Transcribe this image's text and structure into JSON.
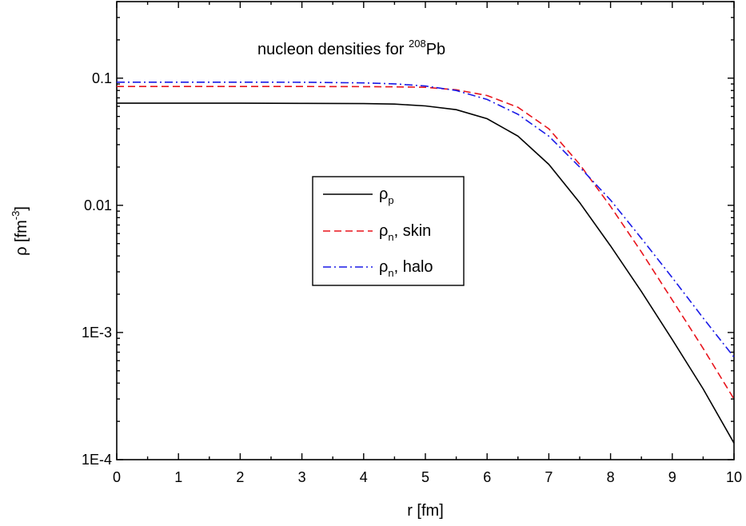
{
  "chart_data": {
    "type": "line",
    "title": {
      "prefix": "nucleon densities for ",
      "superscript": "208",
      "suffix": "Pb"
    },
    "xlabel": "r [fm]",
    "ylabel": {
      "main": "ρ [fm",
      "superscript": "-3",
      "close": "]"
    },
    "xlim": [
      0,
      10
    ],
    "ylim": [
      0.0001,
      0.4
    ],
    "yscale": "log",
    "x_ticks": [
      "0",
      "1",
      "2",
      "3",
      "4",
      "5",
      "6",
      "7",
      "8",
      "9",
      "10"
    ],
    "y_ticks": [
      {
        "value": 0.0001,
        "label": "1E-4"
      },
      {
        "value": 0.001,
        "label": "1E-3"
      },
      {
        "value": 0.01,
        "label": "0.01"
      },
      {
        "value": 0.1,
        "label": "0.1"
      }
    ],
    "grid": false,
    "legend_position": "center",
    "series": [
      {
        "name": "ρp",
        "label_main": "ρ",
        "label_sub": "p",
        "label_rest": "",
        "color": "#000000",
        "dash": "solid",
        "x": [
          0,
          1,
          2,
          3,
          4,
          4.5,
          5,
          5.5,
          6,
          6.5,
          7,
          7.5,
          8,
          8.5,
          9,
          9.5,
          10
        ],
        "y": [
          0.0635,
          0.0635,
          0.0635,
          0.0634,
          0.0631,
          0.0625,
          0.0605,
          0.0565,
          0.048,
          0.035,
          0.021,
          0.0105,
          0.0048,
          0.0021,
          0.00088,
          0.00036,
          0.000135
        ]
      },
      {
        "name": "ρn, skin",
        "label_main": "ρ",
        "label_sub": "n",
        "label_rest": ", skin",
        "color": "#e8141c",
        "dash": "dashed",
        "x": [
          0,
          1,
          2,
          3,
          4,
          4.5,
          5,
          5.5,
          6,
          6.5,
          7,
          7.5,
          8,
          8.5,
          9,
          9.5,
          10
        ],
        "y": [
          0.086,
          0.086,
          0.086,
          0.086,
          0.0858,
          0.0855,
          0.0848,
          0.081,
          0.073,
          0.059,
          0.04,
          0.021,
          0.0098,
          0.0043,
          0.0018,
          0.00075,
          0.0003
        ]
      },
      {
        "name": "ρn, halo",
        "label_main": "ρ",
        "label_sub": "n",
        "label_rest": ", halo",
        "color": "#1a1ae6",
        "dash": "dashdot",
        "x": [
          0,
          1,
          2,
          3,
          4,
          4.5,
          5,
          5.5,
          6,
          6.5,
          7,
          7.5,
          8,
          8.5,
          9,
          9.5,
          10
        ],
        "y": [
          0.093,
          0.093,
          0.093,
          0.0928,
          0.0918,
          0.0902,
          0.0868,
          0.08,
          0.068,
          0.052,
          0.035,
          0.02,
          0.011,
          0.0055,
          0.0027,
          0.0013,
          0.00064
        ]
      }
    ]
  }
}
